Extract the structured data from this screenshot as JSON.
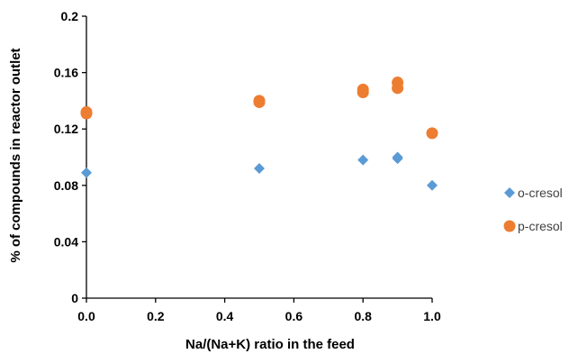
{
  "chart_data": {
    "type": "scatter",
    "xlabel": "Na/(Na+K) ratio in the feed",
    "ylabel": "% of compounds in reactor outlet",
    "xlim": [
      0,
      1
    ],
    "ylim": [
      0,
      0.2
    ],
    "x_ticks": [
      "0.0",
      "0.2",
      "0.4",
      "0.6",
      "0.8",
      "1.0"
    ],
    "y_ticks": [
      "0",
      "0.04",
      "0.08",
      "0.12",
      "0.16",
      "0.2"
    ],
    "grid": false,
    "legend_position": "right",
    "series": [
      {
        "name": "o-cresol",
        "color": "#5B9BD5",
        "marker": "diamond",
        "points": [
          {
            "x": 0.0,
            "y": 0.089
          },
          {
            "x": 0.5,
            "y": 0.092
          },
          {
            "x": 0.8,
            "y": 0.098
          },
          {
            "x": 0.9,
            "y": 0.1
          },
          {
            "x": 0.9,
            "y": 0.099
          },
          {
            "x": 1.0,
            "y": 0.08
          }
        ]
      },
      {
        "name": "p-cresol",
        "color": "#ED7D31",
        "marker": "circle",
        "points": [
          {
            "x": 0.0,
            "y": 0.132
          },
          {
            "x": 0.0,
            "y": 0.131
          },
          {
            "x": 0.5,
            "y": 0.14
          },
          {
            "x": 0.5,
            "y": 0.139
          },
          {
            "x": 0.8,
            "y": 0.148
          },
          {
            "x": 0.8,
            "y": 0.146
          },
          {
            "x": 0.9,
            "y": 0.153
          },
          {
            "x": 0.9,
            "y": 0.149
          },
          {
            "x": 1.0,
            "y": 0.117
          }
        ]
      }
    ]
  }
}
